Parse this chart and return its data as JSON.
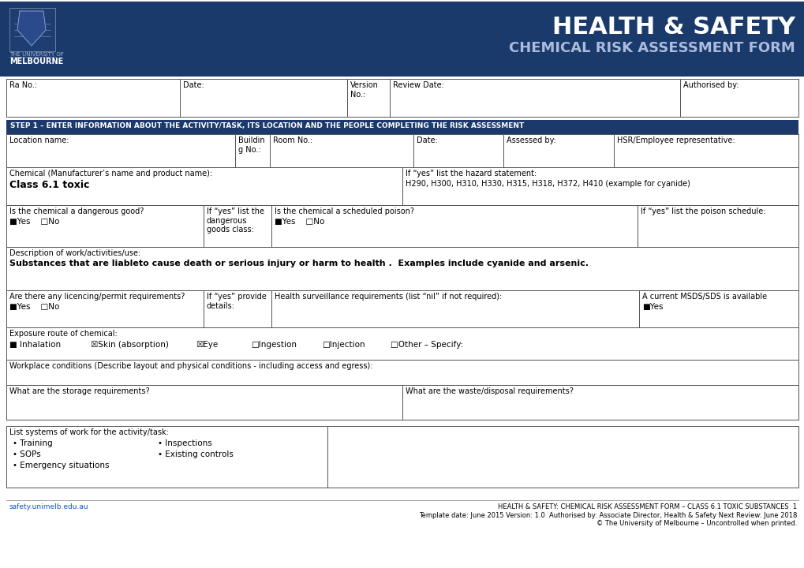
{
  "bg_color": "#ffffff",
  "header_bg": "#1a3a6b",
  "header_title1": "HEALTH & SAFETY",
  "header_title2": "CHEMICAL RISK ASSESSMENT FORM",
  "header_title_color": "#ffffff",
  "step_bg": "#1b3a6b",
  "step_text": "STEP 1 – ENTER INFORMATION ABOUT THE ACTIVITY/TASK, ITS LOCATION AND THE PEOPLE COMPLETING THE RISK ASSESSMENT",
  "step_text_color": "#ffffff",
  "border_color": "#555555",
  "row1_labels": [
    "Ra No.:",
    "Date:",
    "Version\nNo.:",
    "Review Date:",
    "Authorised by:"
  ],
  "location_label": "Location name:",
  "building_label": "Buildin\ng No.:",
  "room_label": "Room No.:",
  "date_label": "Date:",
  "assessed_label": "Assessed by:",
  "hsr_label": "HSR/Employee representative:",
  "chem_label": "Chemical (Manufacturer’s name and product name):",
  "chem_value": "Class 6.1 toxic",
  "hazard_label": "If “yes” list the hazard statement:",
  "hazard_value": "H290, H300, H310, H330, H315, H318, H372, H410 (example for cyanide)",
  "dg_label": "Is the chemical a dangerous good?",
  "dg_yes": "■Yes",
  "dg_no": "□No",
  "dangerous_goods_label": "If “yes” list the\ndangerous\ngoods class:",
  "scheduled_label": "Is the chemical a scheduled poison?",
  "scheduled_yes": "■Yes",
  "scheduled_no": "□No",
  "poison_label": "If “yes” list the poison schedule:",
  "desc_label": "Description of work/activities/use:",
  "desc_value": "Substances that are liableto cause death or serious injury or harm to health .  Examples include cyanide and arsenic.",
  "licence_label": "Are there any licencing/permit requirements?",
  "licence_yes": "■Yes",
  "licence_no": "□No",
  "provide_label": "If “yes” provide\ndetails:",
  "health_surv_label": "Health surveillance requirements (list “nil” if not required):",
  "msds_label": "A current MSDS/SDS is available",
  "msds_yes": "■Yes",
  "exposure_label": "Exposure route of chemical:",
  "exposure_inhalation": "■ Inhalation",
  "exposure_skin": "☒Skin (absorption)",
  "exposure_eye": "☒Eye",
  "exposure_ingestion": "□Ingestion",
  "exposure_injection": "□Injection",
  "exposure_other": "□Other – Specify:",
  "workplace_label": "Workplace conditions (Describe layout and physical conditions - including access and egress):",
  "storage_label": "What are the storage requirements?",
  "waste_label": "What are the waste/disposal requirements?",
  "systems_label": "List systems of work for the activity/task:",
  "systems_items": [
    "Training",
    "SOPs",
    "Emergency situations"
  ],
  "systems_items2": [
    "Inspections",
    "Existing controls"
  ],
  "footer_link": "safety.unimelb.edu.au",
  "footer_right": "HEALTH & SAFETY: CHEMICAL RISK ASSESSMENT FORM – CLASS 6.1 TOXIC SUBSTANCES  1",
  "footer_template": "Template date: June 2015 Version: 1.0  Authorised by: Associate Director, Health & Safety Next Review: June 2018",
  "footer_copyright": "© The University of Melbourne – Uncontrolled when printed.",
  "logo_text1": "THE UNIVERSITY OF",
  "logo_text2": "MELBOURNE"
}
